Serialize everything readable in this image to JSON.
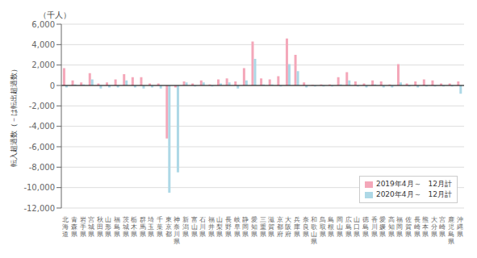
{
  "chart_data": {
    "type": "bar",
    "ylabel": "転入超過数（－は転出超過数）",
    "annotations": [
      "（千人）"
    ],
    "categories": [
      "北\n海\n道",
      "青\n森\n県",
      "岩\n手\n県",
      "宮\n城\n県",
      "秋\n田\n県",
      "山\n形\n県",
      "福\n島\n県",
      "茨\n城\n県",
      "栃\n木\n県",
      "群\n馬\n県",
      "埼\n玉\n県",
      "千\n葉\n県",
      "東\n京\n都",
      "神\n奈\n川\n県",
      "新\n潟\n県",
      "富\n山\n県",
      "石\n川\n県",
      "福\n井\n県",
      "山\n梨\n県",
      "長\n野\n県",
      "岐\n阜\n県",
      "静\n岡\n県",
      "愛\n知\n県",
      "三\n重\n県",
      "滋\n賀\n県",
      "京\n都\n府",
      "大\n阪\n府",
      "兵\n庫\n県",
      "奈\n良\n県",
      "和\n歌\n山\n県",
      "鳥\n取\n県",
      "島\n根\n県",
      "岡\n山\n県",
      "広\n島\n県",
      "山\n口\n県",
      "徳\n島\n県",
      "香\n川\n県",
      "愛\n媛\n県",
      "高\n知\n県",
      "福\n岡\n県",
      "佐\n賀\n県",
      "長\n崎\n県",
      "熊\n本\n県",
      "大\n分\n県",
      "宮\n崎\n県",
      "鹿\n児\n島\n県",
      "沖\n縄\n県"
    ],
    "series": [
      {
        "name": "2019年4月～　12月計",
        "color": "#F4A7B9",
        "values": [
          1700,
          500,
          300,
          1200,
          200,
          300,
          600,
          1100,
          800,
          800,
          200,
          200,
          -5200,
          -200,
          400,
          200,
          500,
          100,
          600,
          700,
          400,
          1700,
          4300,
          700,
          600,
          900,
          4600,
          3000,
          300,
          50,
          100,
          100,
          800,
          1300,
          400,
          200,
          500,
          400,
          100,
          2100,
          200,
          400,
          600,
          500,
          200,
          200,
          400
        ]
      },
      {
        "name": "2020年4月～　12月計",
        "color": "#ADD8E6",
        "values": [
          -200,
          100,
          100,
          600,
          -300,
          -200,
          -200,
          500,
          -200,
          -300,
          -200,
          -300,
          -10500,
          -8500,
          300,
          -100,
          300,
          -100,
          200,
          300,
          -300,
          500,
          2600,
          100,
          100,
          -100,
          2100,
          1400,
          -200,
          -100,
          -100,
          -100,
          100,
          500,
          -100,
          -200,
          100,
          -200,
          -200,
          300,
          -100,
          -200,
          -100,
          -100,
          -100,
          -100,
          -800
        ]
      }
    ],
    "ylim": [
      -12000,
      6000
    ],
    "yticks": [
      {
        "value": -12000,
        "label": "-12,000"
      },
      {
        "value": -10000,
        "label": "-10,000"
      },
      {
        "value": -8000,
        "label": "-8,000"
      },
      {
        "value": -6000,
        "label": "-6,000"
      },
      {
        "value": -4000,
        "label": "-4,000"
      },
      {
        "value": -2000,
        "label": "-2,000"
      },
      0,
      {
        "value": 2000,
        "label": "2,000"
      },
      {
        "value": 4000,
        "label": "4,000"
      },
      {
        "value": 6000,
        "label": "6,000"
      }
    ],
    "grid": true,
    "legend": "lower right"
  }
}
